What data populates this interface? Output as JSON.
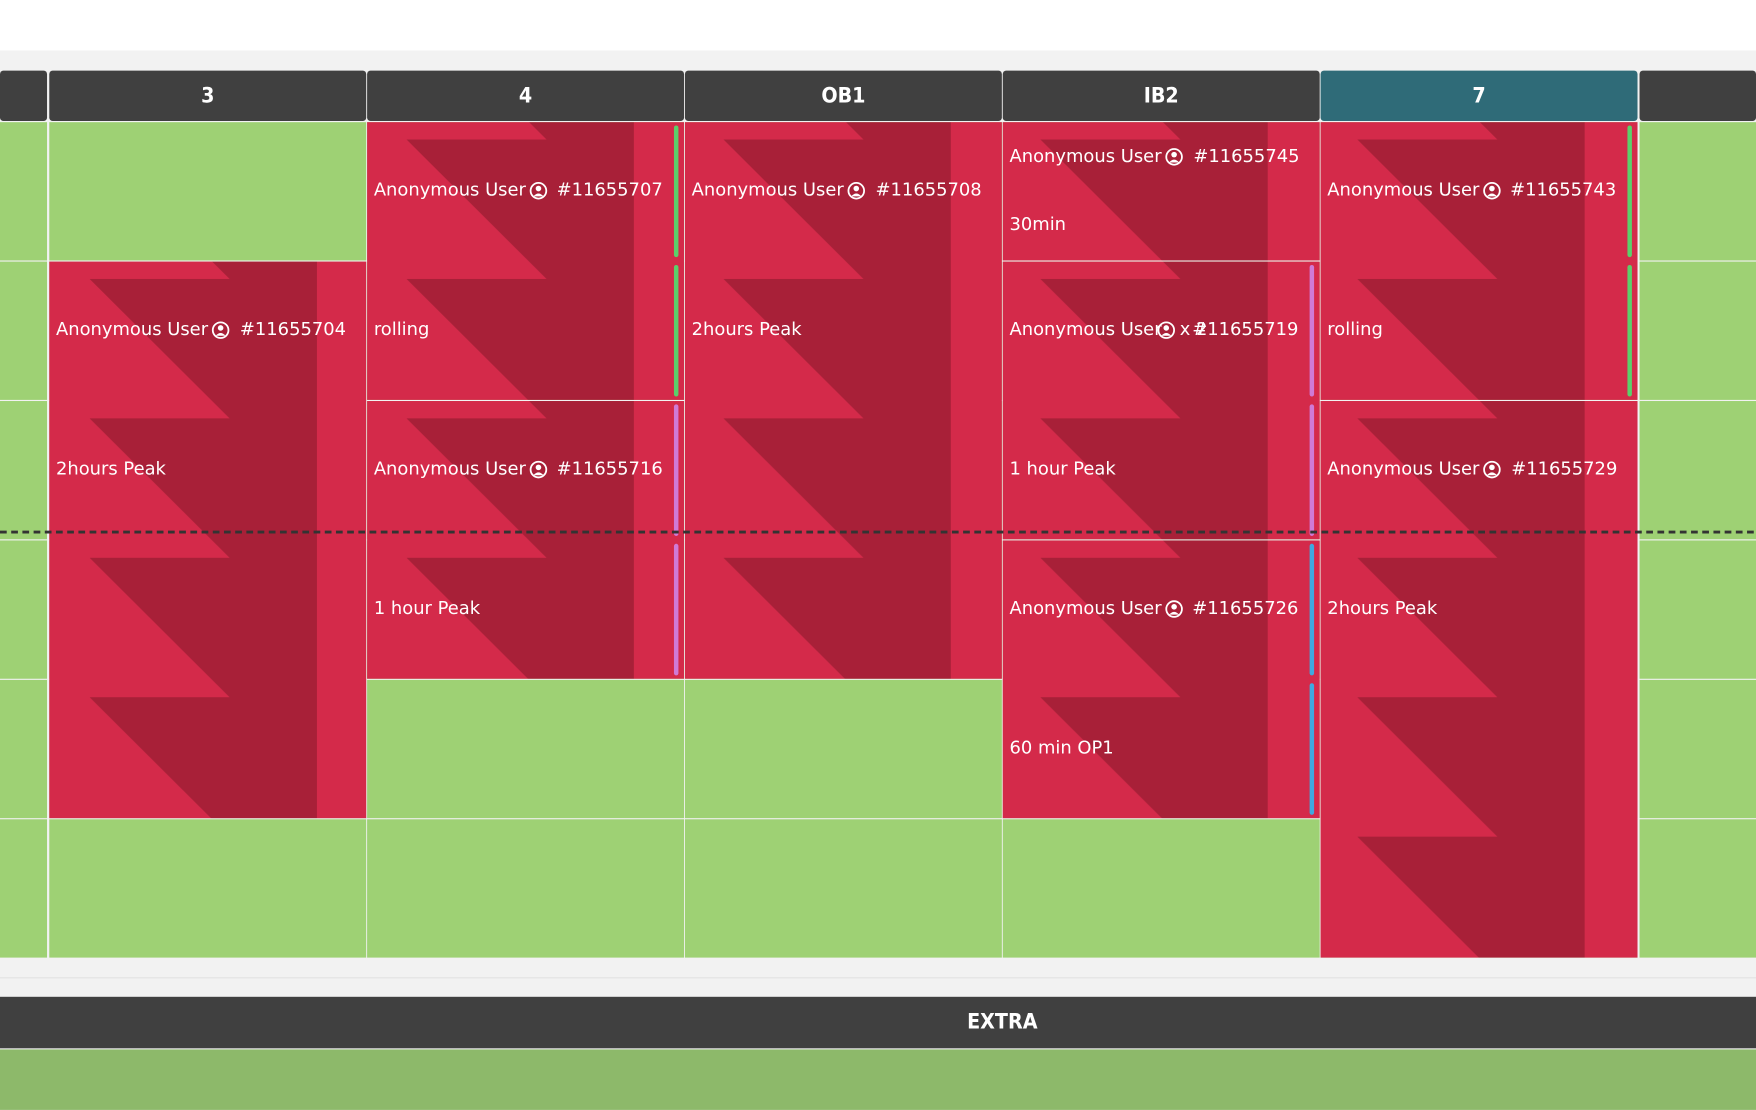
{
  "columns": [
    {
      "label": "3"
    },
    {
      "label": "4"
    },
    {
      "label": "OB1"
    },
    {
      "label": "IB2"
    },
    {
      "label": "7"
    }
  ],
  "bookings": [
    {
      "user": "Anonymous User",
      "ref": "#11655704",
      "note": "2hours Peak"
    },
    {
      "user": "Anonymous User",
      "ref": "#11655707",
      "note": "rolling"
    },
    {
      "user": "Anonymous User",
      "ref": "#11655716",
      "note": "1 hour Peak"
    },
    {
      "user": "Anonymous User",
      "ref": "#11655708",
      "note": "2hours Peak"
    },
    {
      "user": "Anonymous User",
      "ref": "#11655745",
      "note": "30min"
    },
    {
      "user": "Anonymous User",
      "guests": "x 2",
      "ref": "#11655719",
      "note": "1 hour Peak"
    },
    {
      "user": "Anonymous User",
      "ref": "#11655726",
      "note": "60 min OP1"
    },
    {
      "user": "Anonymous User",
      "ref": "#11655743",
      "note": "rolling"
    },
    {
      "user": "Anonymous User",
      "ref": "#11655729",
      "note": "2hours Peak"
    }
  ],
  "extra": {
    "label": "EXTRA"
  }
}
